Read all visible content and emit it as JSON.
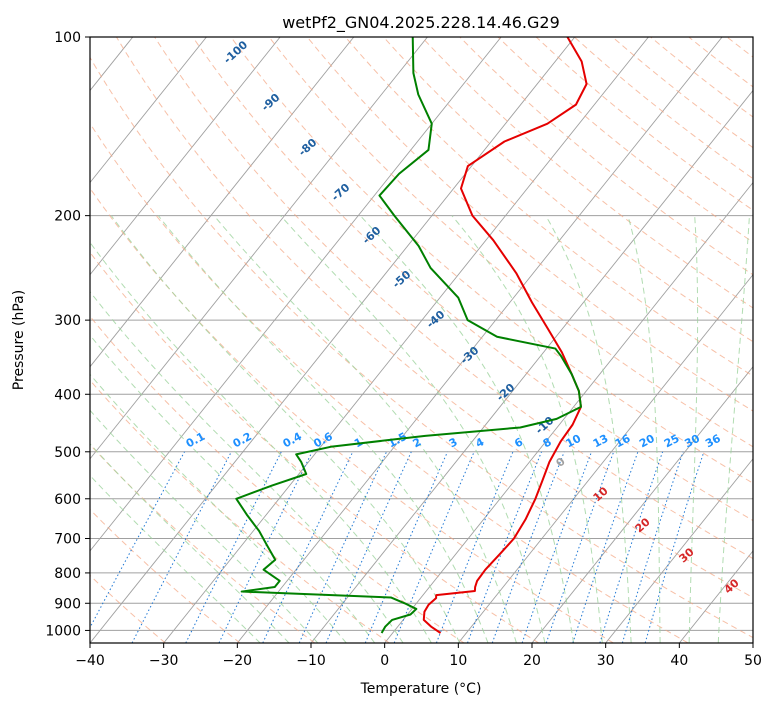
{
  "chart_data": {
    "type": "line",
    "title": "wetPf2_GN04.2025.228.14.46.G29",
    "xlabel": "Temperature (°C)",
    "ylabel": "Pressure (hPa)",
    "xlim": [
      -40,
      50
    ],
    "ylim": [
      1050,
      100
    ],
    "y_scale": "log",
    "x_ticks": [
      -40,
      -30,
      -20,
      -10,
      0,
      10,
      20,
      30,
      40,
      50
    ],
    "x_tick_labels": [
      "−40",
      "−30",
      "−20",
      "−10",
      "0",
      "10",
      "20",
      "30",
      "40",
      "50"
    ],
    "y_ticks": [
      1000,
      900,
      800,
      700,
      600,
      500,
      400,
      300,
      200,
      100
    ],
    "y_tick_labels": [
      "1000",
      "900",
      "800",
      "700",
      "600",
      "500",
      "400",
      "300",
      "200",
      "100"
    ],
    "grid": true,
    "skew": "skew-T log-P",
    "colors": {
      "temperature": "#e50000",
      "dewpoint": "#008000",
      "isotherm": "#a0a0a0",
      "dry_adiabat": "#f4a582",
      "moist_adiabat": "#9ed39e",
      "mixing_ratio": "#1f77d4",
      "dry_label": "#1f5fa0",
      "mixing_label": "#1e90ff",
      "moist_label": "#d62728"
    },
    "series": [
      {
        "role": "temperature",
        "points": [
          {
            "p": 1010,
            "t": 6.5
          },
          {
            "p": 985,
            "t": 4.5
          },
          {
            "p": 960,
            "t": 2.8
          },
          {
            "p": 930,
            "t": 2.0
          },
          {
            "p": 905,
            "t": 1.8
          },
          {
            "p": 882,
            "t": 2.1
          },
          {
            "p": 872,
            "t": 1.8
          },
          {
            "p": 858,
            "t": 6.6
          },
          {
            "p": 845,
            "t": 6.2
          },
          {
            "p": 825,
            "t": 5.8
          },
          {
            "p": 790,
            "t": 5.7
          },
          {
            "p": 740,
            "t": 6.0
          },
          {
            "p": 700,
            "t": 6.2
          },
          {
            "p": 650,
            "t": 5.7
          },
          {
            "p": 600,
            "t": 4.8
          },
          {
            "p": 560,
            "t": 3.8
          },
          {
            "p": 520,
            "t": 2.7
          },
          {
            "p": 480,
            "t": 2.0
          },
          {
            "p": 450,
            "t": 1.8
          },
          {
            "p": 420,
            "t": 1.0
          },
          {
            "p": 395,
            "t": -1.0
          },
          {
            "p": 370,
            "t": -3.8
          },
          {
            "p": 340,
            "t": -7.5
          },
          {
            "p": 310,
            "t": -12.0
          },
          {
            "p": 280,
            "t": -17.0
          },
          {
            "p": 250,
            "t": -22.3
          },
          {
            "p": 220,
            "t": -29.0
          },
          {
            "p": 200,
            "t": -34.5
          },
          {
            "p": 180,
            "t": -39.0
          },
          {
            "p": 165,
            "t": -40.5
          },
          {
            "p": 150,
            "t": -38.2
          },
          {
            "p": 140,
            "t": -34.3
          },
          {
            "p": 130,
            "t": -32.5
          },
          {
            "p": 120,
            "t": -33.3
          },
          {
            "p": 110,
            "t": -36.4
          },
          {
            "p": 100,
            "t": -41.0
          }
        ]
      },
      {
        "role": "dewpoint",
        "points": [
          {
            "p": 1010,
            "t": -1.5
          },
          {
            "p": 985,
            "t": -1.7
          },
          {
            "p": 960,
            "t": -1.5
          },
          {
            "p": 940,
            "t": 0.4
          },
          {
            "p": 920,
            "t": 0.6
          },
          {
            "p": 900,
            "t": -1.6
          },
          {
            "p": 880,
            "t": -4.1
          },
          {
            "p": 860,
            "t": -25.0
          },
          {
            "p": 845,
            "t": -21.0
          },
          {
            "p": 825,
            "t": -21.0
          },
          {
            "p": 790,
            "t": -24.4
          },
          {
            "p": 760,
            "t": -23.9
          },
          {
            "p": 720,
            "t": -26.5
          },
          {
            "p": 680,
            "t": -29.2
          },
          {
            "p": 640,
            "t": -32.5
          },
          {
            "p": 600,
            "t": -35.8
          },
          {
            "p": 570,
            "t": -32.4
          },
          {
            "p": 545,
            "t": -29.0
          },
          {
            "p": 520,
            "t": -31.0
          },
          {
            "p": 505,
            "t": -32.5
          },
          {
            "p": 490,
            "t": -28.5
          },
          {
            "p": 470,
            "t": -17.0
          },
          {
            "p": 455,
            "t": -5.0
          },
          {
            "p": 440,
            "t": -1.0
          },
          {
            "p": 420,
            "t": 1.0
          },
          {
            "p": 395,
            "t": -1.0
          },
          {
            "p": 370,
            "t": -3.8
          },
          {
            "p": 345,
            "t": -7.2
          },
          {
            "p": 335,
            "t": -8.8
          },
          {
            "p": 320,
            "t": -18.0
          },
          {
            "p": 300,
            "t": -23.8
          },
          {
            "p": 275,
            "t": -27.5
          },
          {
            "p": 245,
            "t": -34.5
          },
          {
            "p": 225,
            "t": -38.5
          },
          {
            "p": 200,
            "t": -45.1
          },
          {
            "p": 185,
            "t": -49.3
          },
          {
            "p": 170,
            "t": -49.0
          },
          {
            "p": 155,
            "t": -47.6
          },
          {
            "p": 140,
            "t": -50.0
          },
          {
            "p": 125,
            "t": -55.0
          },
          {
            "p": 115,
            "t": -58.0
          },
          {
            "p": 100,
            "t": -62.0
          }
        ]
      }
    ],
    "dry_adiabat_labels": [
      "-100",
      "-90",
      "-80",
      "-70",
      "-60",
      "-50",
      "-40",
      "-30",
      "-20",
      "-10"
    ],
    "mixing_ratio_labels": [
      "0.1",
      "0.2",
      "0.4",
      "0.6",
      "1",
      "1.5",
      "2",
      "3",
      "4",
      "6",
      "8",
      "10",
      "13",
      "16",
      "20",
      "25",
      "30",
      "36"
    ],
    "moist_adiabat_labels": [
      "0",
      "10",
      "20",
      "30",
      "40"
    ]
  }
}
